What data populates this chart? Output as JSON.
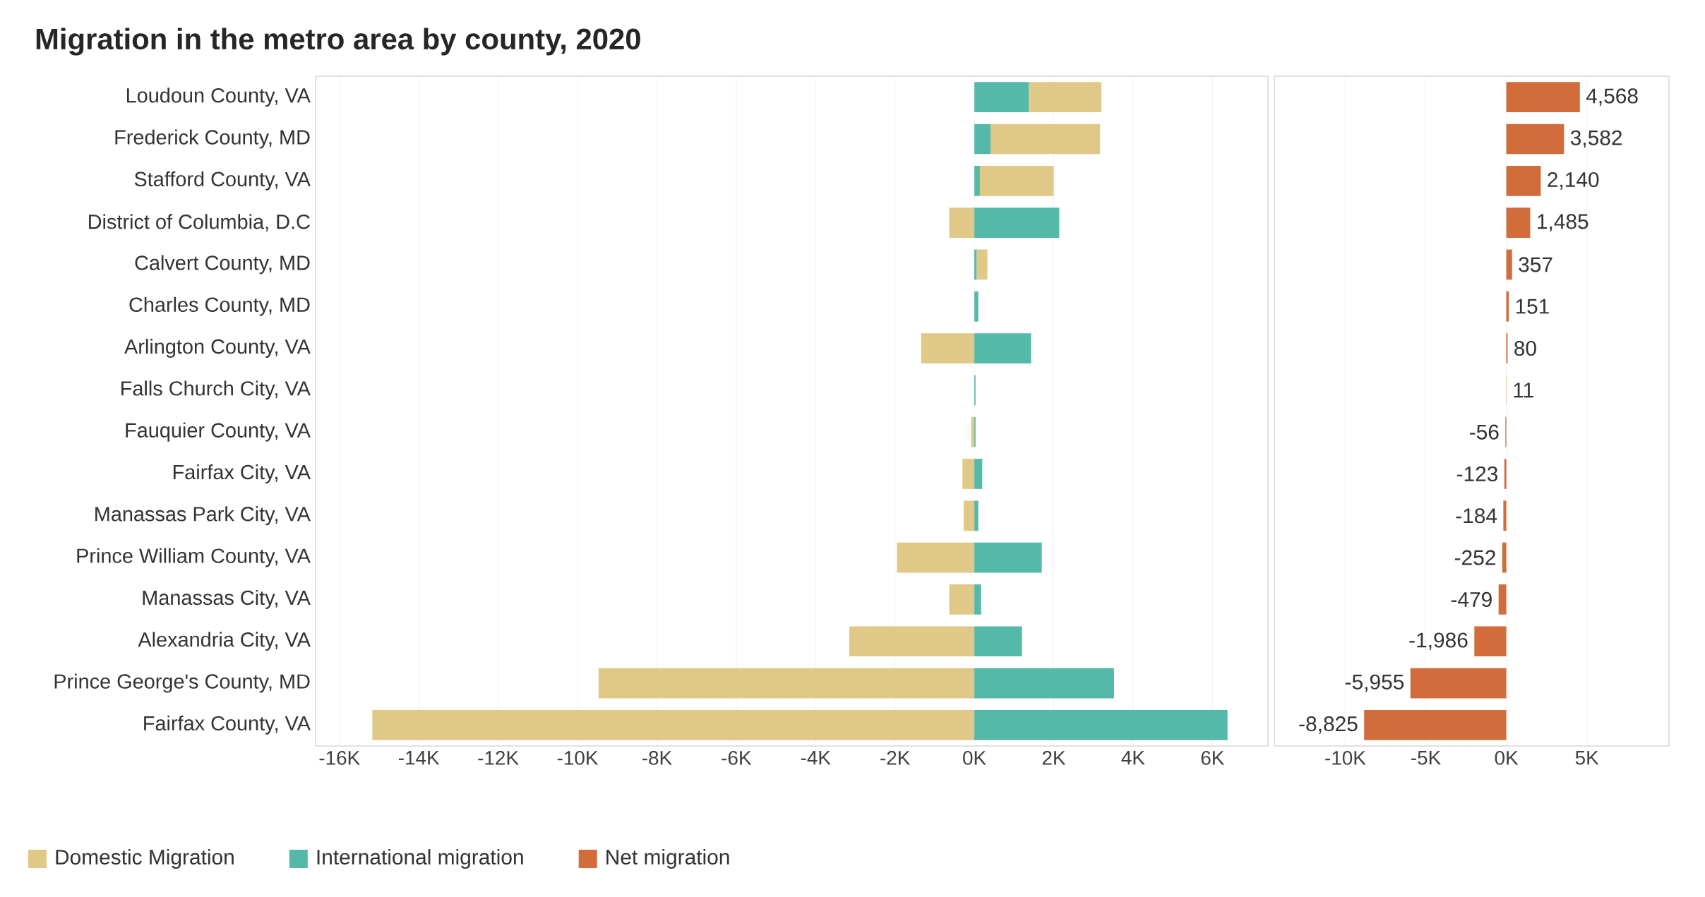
{
  "chart_data": [
    {
      "type": "bar",
      "title": "Migration in the metro area by county, 2020",
      "orientation": "horizontal",
      "stacked": true,
      "grid": "x",
      "legend": "bottom",
      "categories": [
        "Loudoun County, VA",
        "Frederick County, MD",
        "Stafford County, VA",
        "District of Columbia, D.C",
        "Calvert County, MD",
        "Charles County, MD",
        "Arlington County, VA",
        "Falls Church City, VA",
        "Fauquier County, VA",
        "Fairfax City, VA",
        "Manassas Park City, VA",
        "Prince William County, VA",
        "Manassas City, VA",
        "Alexandria City, VA",
        "Prince George's County, MD",
        "Fairfax County, VA"
      ],
      "series": [
        {
          "name": "International migration",
          "color": "#55b9a9",
          "values": [
            1370,
            410,
            140,
            2140,
            60,
            100,
            1430,
            30,
            30,
            200,
            100,
            1700,
            170,
            1200,
            3520,
            6380
          ]
        },
        {
          "name": "Domestic Migration",
          "color": "#e0c886",
          "values": [
            1830,
            2760,
            1860,
            -630,
            270,
            0,
            -1340,
            0,
            -80,
            -300,
            -270,
            -1950,
            -630,
            -3150,
            -9470,
            -15170
          ]
        }
      ],
      "xlim": [
        -16600,
        7400
      ],
      "xticks": [
        {
          "value": -16000,
          "label": "-16K"
        },
        {
          "value": -14000,
          "label": "-14K"
        },
        {
          "value": -12000,
          "label": "-12K"
        },
        {
          "value": -10000,
          "label": "-10K"
        },
        {
          "value": -8000,
          "label": "-8K"
        },
        {
          "value": -6000,
          "label": "-6K"
        },
        {
          "value": -4000,
          "label": "-4K"
        },
        {
          "value": -2000,
          "label": "-2K"
        },
        {
          "value": 0,
          "label": "0K"
        },
        {
          "value": 2000,
          "label": "2K"
        },
        {
          "value": 4000,
          "label": "4K"
        },
        {
          "value": 6000,
          "label": "6K"
        }
      ]
    },
    {
      "type": "bar",
      "orientation": "horizontal",
      "grid": "x",
      "legend": "bottom",
      "tick_labels": "x",
      "categories": [
        null,
        null,
        null,
        null,
        null,
        null,
        null,
        null,
        null,
        null,
        null,
        null,
        null,
        null,
        null,
        null
      ],
      "series": [
        {
          "name": "Net migration",
          "color": "#d36c3b",
          "values": [
            4568,
            3582,
            2140,
            1485,
            357,
            151,
            80,
            11,
            -56,
            -123,
            -184,
            -252,
            -479,
            -1986,
            -5955,
            -8825
          ],
          "value_labels": [
            "4,568",
            "3,582",
            "2,140",
            "1,485",
            "357",
            "151",
            "80",
            "11",
            "-56",
            "-123",
            "-184",
            "-252",
            "-479",
            "-1,986",
            "-5,955",
            "-8,825"
          ]
        }
      ],
      "xlim": [
        -14400,
        10100
      ],
      "xticks": [
        {
          "value": -10000,
          "label": "-10K"
        },
        {
          "value": -5000,
          "label": "-5K"
        },
        {
          "value": 0,
          "label": "0K"
        },
        {
          "value": 5000,
          "label": "5K"
        }
      ]
    }
  ]
}
